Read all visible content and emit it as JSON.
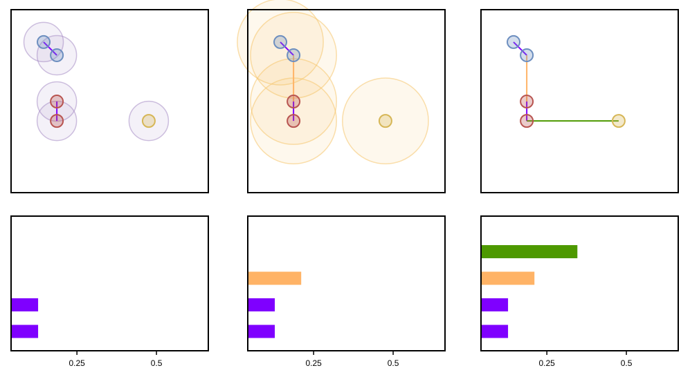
{
  "chart_data": [
    {
      "type": "scatter",
      "x": [
        0.165,
        0.232,
        0.232,
        0.232,
        0.698
      ],
      "y": [
        0.823,
        0.751,
        0.498,
        0.392,
        0.392
      ],
      "colors": [
        "#6c8ebf",
        "#6c8ebf",
        "#b85450",
        "#b85450",
        "#d6b656"
      ],
      "radius": 0.1,
      "ball_color": "#a58cc4",
      "edges": [
        {
          "from": 0,
          "to": 1,
          "color": "#7f00ff"
        },
        {
          "from": 2,
          "to": 3,
          "color": "#7f00ff"
        }
      ],
      "xlim": [
        0,
        1
      ],
      "ylim": [
        0,
        1
      ]
    },
    {
      "type": "scatter",
      "x": [
        0.165,
        0.232,
        0.232,
        0.232,
        0.698
      ],
      "y": [
        0.823,
        0.751,
        0.498,
        0.392,
        0.392
      ],
      "colors": [
        "#6c8ebf",
        "#6c8ebf",
        "#b85450",
        "#b85450",
        "#d6b656"
      ],
      "radius": 0.218,
      "ball_color": "#f5c46a",
      "edges": [
        {
          "from": 0,
          "to": 1,
          "color": "#7f00ff"
        },
        {
          "from": 2,
          "to": 3,
          "color": "#7f00ff"
        },
        {
          "from": 1,
          "to": 2,
          "color": "#ffb366"
        }
      ],
      "xlim": [
        0,
        1
      ],
      "ylim": [
        0,
        1
      ]
    },
    {
      "type": "scatter",
      "x": [
        0.165,
        0.232,
        0.232,
        0.232,
        0.698
      ],
      "y": [
        0.823,
        0.751,
        0.498,
        0.392,
        0.392
      ],
      "colors": [
        "#6c8ebf",
        "#6c8ebf",
        "#b85450",
        "#b85450",
        "#d6b656"
      ],
      "edges": [
        {
          "from": 0,
          "to": 1,
          "color": "#7f00ff"
        },
        {
          "from": 2,
          "to": 3,
          "color": "#7f00ff"
        },
        {
          "from": 1,
          "to": 2,
          "color": "#ffb366"
        },
        {
          "from": 3,
          "to": 4,
          "color": "#4d9900"
        }
      ],
      "xlim": [
        0,
        1
      ],
      "ylim": [
        0,
        1
      ]
    },
    {
      "type": "barcode",
      "values": [
        0.128,
        0.128
      ],
      "colors": [
        "#7f00ff",
        "#7f00ff"
      ],
      "xlim": [
        0.043,
        0.663
      ],
      "xticks": [
        0.25,
        0.5
      ]
    },
    {
      "type": "barcode",
      "values": [
        0.128,
        0.128,
        0.211
      ],
      "colors": [
        "#7f00ff",
        "#7f00ff",
        "#ffb366"
      ],
      "xlim": [
        0.043,
        0.663
      ],
      "xticks": [
        0.25,
        0.5
      ]
    },
    {
      "type": "barcode",
      "values": [
        0.128,
        0.128,
        0.211,
        0.346
      ],
      "colors": [
        "#7f00ff",
        "#7f00ff",
        "#ffb366",
        "#4d9900"
      ],
      "xlim": [
        0.043,
        0.663
      ],
      "xticks": [
        0.25,
        0.5
      ]
    }
  ]
}
